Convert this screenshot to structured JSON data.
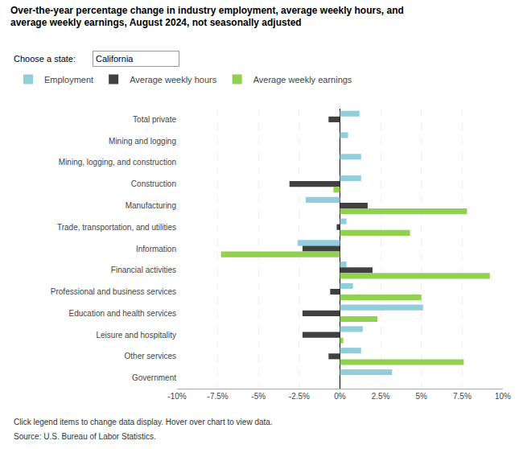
{
  "chart_data": {
    "type": "bar",
    "orientation": "horizontal",
    "title": "Over-the-year percentage change in industry employment, average weekly hours, and\naverage weekly earnings, August 2024, not seasonally adjusted",
    "annotations": [
      "Choose a state:",
      "California",
      "Click legend items to change data display. Hover over chart to view data.",
      "Source: U.S. Bureau of Labor Statistics."
    ],
    "categories": [
      "Total private",
      "Mining and logging",
      "Mining, logging, and construction",
      "Construction",
      "Manufacturing",
      "Trade, transportation, and utilities",
      "Information",
      "Financial activities",
      "Professional and business services",
      "Education and health services",
      "Leisure and hospitality",
      "Other services",
      "Government"
    ],
    "series": [
      {
        "name": "Employment",
        "color": "#92CDDC",
        "values": [
          1.2,
          0.5,
          1.3,
          1.3,
          -2.1,
          0.4,
          -2.6,
          0.4,
          0.8,
          5.1,
          1.4,
          1.3,
          3.2
        ]
      },
      {
        "name": "Average weekly hours",
        "color": "#404040",
        "values": [
          -0.7,
          0.0,
          0.0,
          -3.1,
          1.7,
          -0.2,
          -2.3,
          2.0,
          -0.6,
          -2.3,
          -2.3,
          -0.7,
          0.0
        ]
      },
      {
        "name": "Average weekly earnings",
        "color": "#92D050",
        "values": [
          0.0,
          0.0,
          0.0,
          -0.4,
          7.8,
          4.3,
          -7.3,
          9.2,
          5.0,
          2.3,
          0.2,
          7.6,
          0.0
        ]
      }
    ],
    "xlim": [
      -10,
      10
    ],
    "xticks": [
      {
        "value": -10,
        "label": "-10%"
      },
      {
        "value": -7.5,
        "label": "-7.5%"
      },
      {
        "value": -5,
        "label": "-5%"
      },
      {
        "value": -2.5,
        "label": "-2.5%"
      },
      {
        "value": 0,
        "label": "0%"
      },
      {
        "value": 2.5,
        "label": "2.5%"
      },
      {
        "value": 5,
        "label": "5%"
      },
      {
        "value": 7.5,
        "label": "7.5%"
      },
      {
        "value": 10,
        "label": "10%"
      }
    ],
    "grid": true,
    "legend": "top"
  }
}
